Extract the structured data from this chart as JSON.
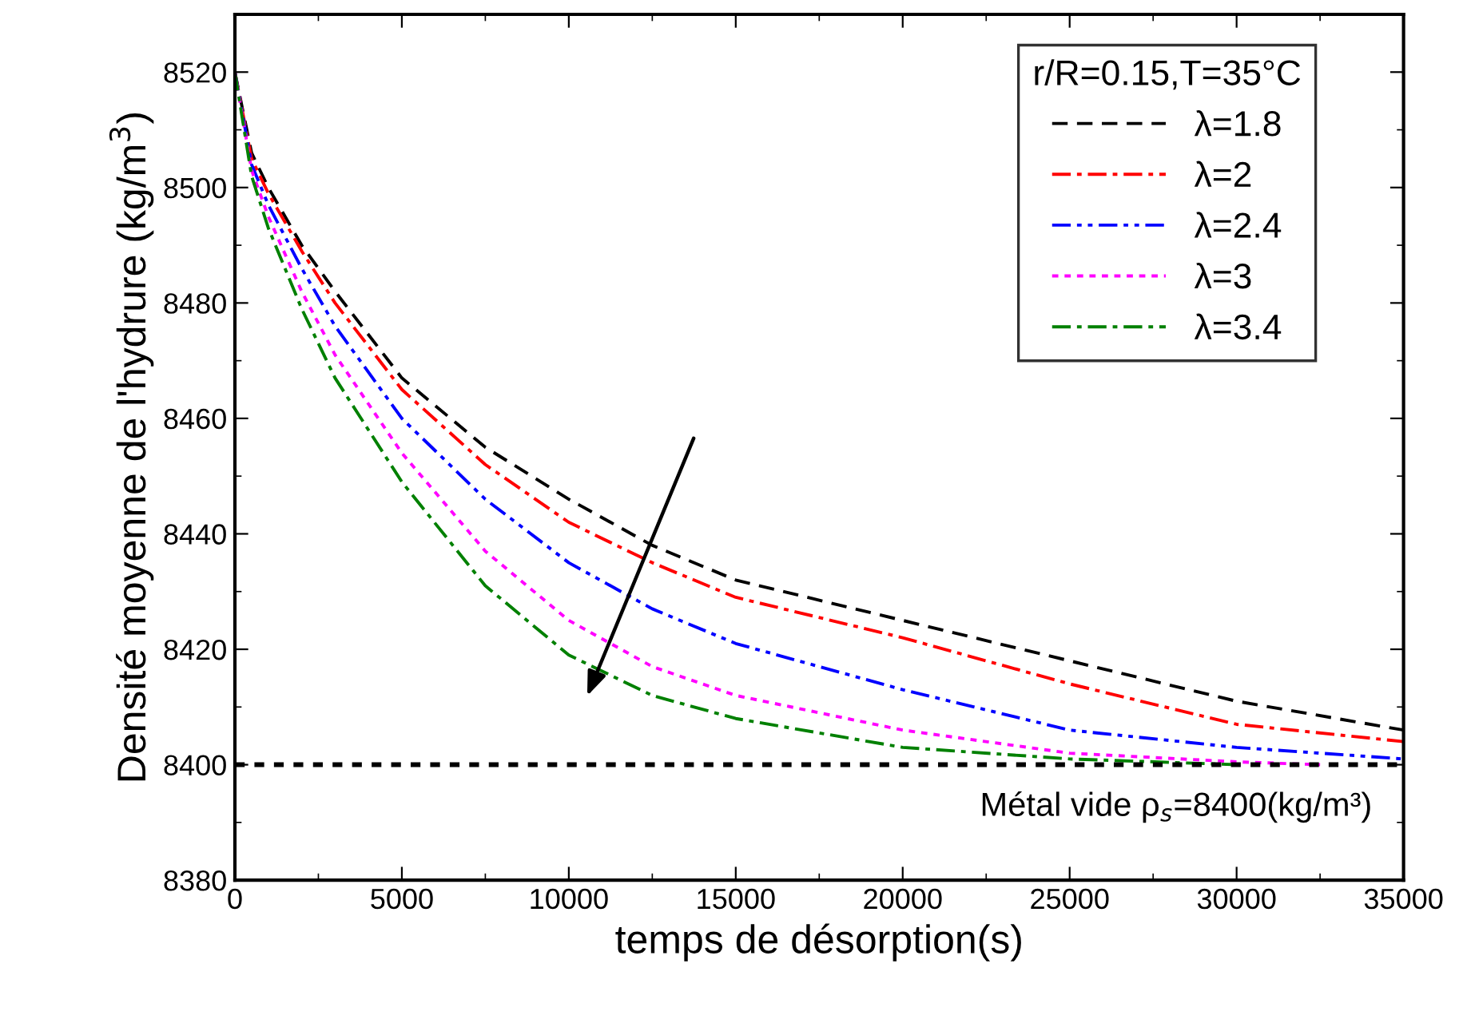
{
  "chart_data": {
    "type": "line",
    "xlabel": "temps de désorption(s)",
    "ylabel": "Densité moyenne de l'hydrure (kg/m$^{3}$)",
    "legend_title": "r/R=0.15,T=35°C",
    "legend": "top right",
    "grid": false,
    "xlim": [
      0,
      35000
    ],
    "xticks": [
      0,
      5000,
      10000,
      15000,
      20000,
      25000,
      30000,
      35000
    ],
    "ylim": [
      8380,
      8530
    ],
    "yticks": [
      8380,
      8400,
      8420,
      8440,
      8460,
      8480,
      8500,
      8520
    ],
    "series": [
      {
        "name": "λ=1.8",
        "color": "#000000",
        "line_style": "dashed",
        "x": [
          0,
          500,
          1000,
          2000,
          3000,
          5000,
          7500,
          10000,
          12500,
          15000,
          20000,
          25000,
          30000,
          35000
        ],
        "values": [
          8520,
          8506,
          8500,
          8490,
          8482,
          8467,
          8455,
          8446,
          8438,
          8432,
          8425,
          8418,
          8411,
          8406
        ]
      },
      {
        "name": "λ=2",
        "color": "#ff0000",
        "line_style": "dashdot",
        "x": [
          0,
          500,
          1000,
          2000,
          3000,
          5000,
          7500,
          10000,
          12500,
          15000,
          20000,
          25000,
          30000,
          35000
        ],
        "values": [
          8520,
          8505,
          8499,
          8489,
          8480,
          8465,
          8452,
          8442,
          8435,
          8429,
          8422,
          8414,
          8407,
          8404
        ]
      },
      {
        "name": "λ=2.4",
        "color": "#0000ff",
        "line_style": "dashdotdot",
        "x": [
          0,
          500,
          1000,
          2000,
          3000,
          5000,
          7500,
          10000,
          12500,
          15000,
          20000,
          25000,
          30000,
          35000
        ],
        "values": [
          8520,
          8504,
          8497,
          8486,
          8476,
          8460,
          8446,
          8435,
          8427,
          8421,
          8413,
          8406,
          8403,
          8401
        ]
      },
      {
        "name": "λ=3",
        "color": "#ff00ff",
        "line_style": "dotted",
        "x": [
          0,
          500,
          1000,
          2000,
          3000,
          5000,
          7500,
          10000,
          12500,
          15000,
          20000,
          25000,
          30000,
          32500
        ],
        "values": [
          8520,
          8503,
          8495,
          8482,
          8471,
          8454,
          8437,
          8425,
          8417,
          8412,
          8406,
          8402,
          8400.5,
          8400
        ]
      },
      {
        "name": "λ=3.4",
        "color": "#008000",
        "line_style": "dashdot",
        "x": [
          0,
          500,
          1000,
          2000,
          3000,
          5000,
          7500,
          10000,
          12500,
          15000,
          20000,
          25000,
          30000
        ],
        "values": [
          8520,
          8502,
          8493,
          8479,
          8467,
          8449,
          8431,
          8419,
          8412,
          8408,
          8403,
          8401,
          8400
        ]
      }
    ],
    "ref_lines": [
      {
        "axis": "y",
        "value": 8400,
        "label": "Métal vide ρ$_{s}$=8400(kg/m³)",
        "color": "#000000",
        "line_style": "dotted"
      }
    ]
  }
}
